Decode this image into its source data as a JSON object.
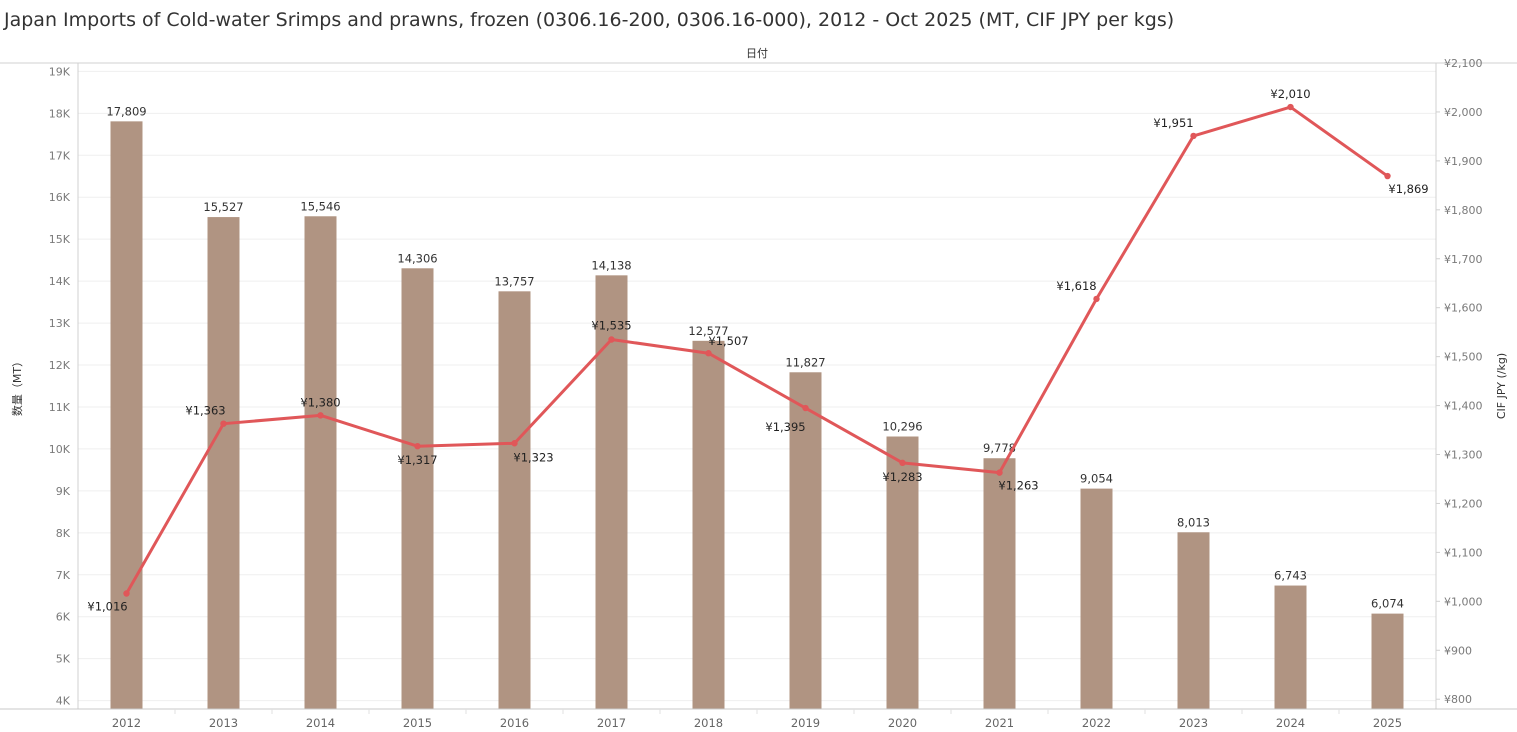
{
  "title": "Japan Imports of Cold-water Srimps and prawns, frozen (0306.16-200, 0306.16-000), 2012 - Oct 2025 (MT, CIF JPY per kgs)",
  "chart_data": {
    "type": "bar+line",
    "title": "Japan Imports of Cold-water Srimps and prawns, frozen (0306.16-200, 0306.16-000), 2012 - Oct 2025 (MT, CIF JPY per kgs)",
    "xlabel": "日付",
    "y_left_label": "数量（MT）",
    "y_right_label": "CIF JPY (/kg)",
    "categories": [
      "2012",
      "2013",
      "2014",
      "2015",
      "2016",
      "2017",
      "2018",
      "2019",
      "2020",
      "2021",
      "2022",
      "2023",
      "2024",
      "2025"
    ],
    "bars": {
      "values": [
        17809,
        15527,
        15546,
        14306,
        13757,
        14138,
        12577,
        11827,
        10296,
        9778,
        9054,
        8013,
        6743,
        6074
      ],
      "labels": [
        "17,809",
        "15,527",
        "15,546",
        "14,306",
        "13,757",
        "14,138",
        "12,577",
        "11,827",
        "10,296",
        "9,778",
        "9,054",
        "8,013",
        "6,743",
        "6,074"
      ],
      "color": "#b09482"
    },
    "line": {
      "values": [
        1016,
        1363,
        1380,
        1317,
        1323,
        1535,
        1507,
        1395,
        1283,
        1263,
        1618,
        1951,
        2010,
        1869
      ],
      "labels": [
        "¥1,016",
        "¥1,363",
        "¥1,380",
        "¥1,317",
        "¥1,323",
        "¥1,535",
        "¥1,507",
        "¥1,395",
        "¥1,283",
        "¥1,263",
        "¥1,618",
        "¥1,951",
        "¥2,010",
        "¥1,869"
      ],
      "color": "#e05759"
    },
    "y_left_ticks": [
      "4K",
      "5K",
      "6K",
      "7K",
      "8K",
      "9K",
      "10K",
      "11K",
      "12K",
      "13K",
      "14K",
      "15K",
      "16K",
      "17K",
      "18K",
      "19K"
    ],
    "y_left_range": [
      3800,
      19200
    ],
    "y_right_ticks": [
      "¥800",
      "¥900",
      "¥1,000",
      "¥1,100",
      "¥1,200",
      "¥1,300",
      "¥1,400",
      "¥1,500",
      "¥1,600",
      "¥1,700",
      "¥1,800",
      "¥1,900",
      "¥2,000",
      "¥2,100"
    ],
    "y_right_range": [
      780,
      2100
    ],
    "grid": true
  }
}
